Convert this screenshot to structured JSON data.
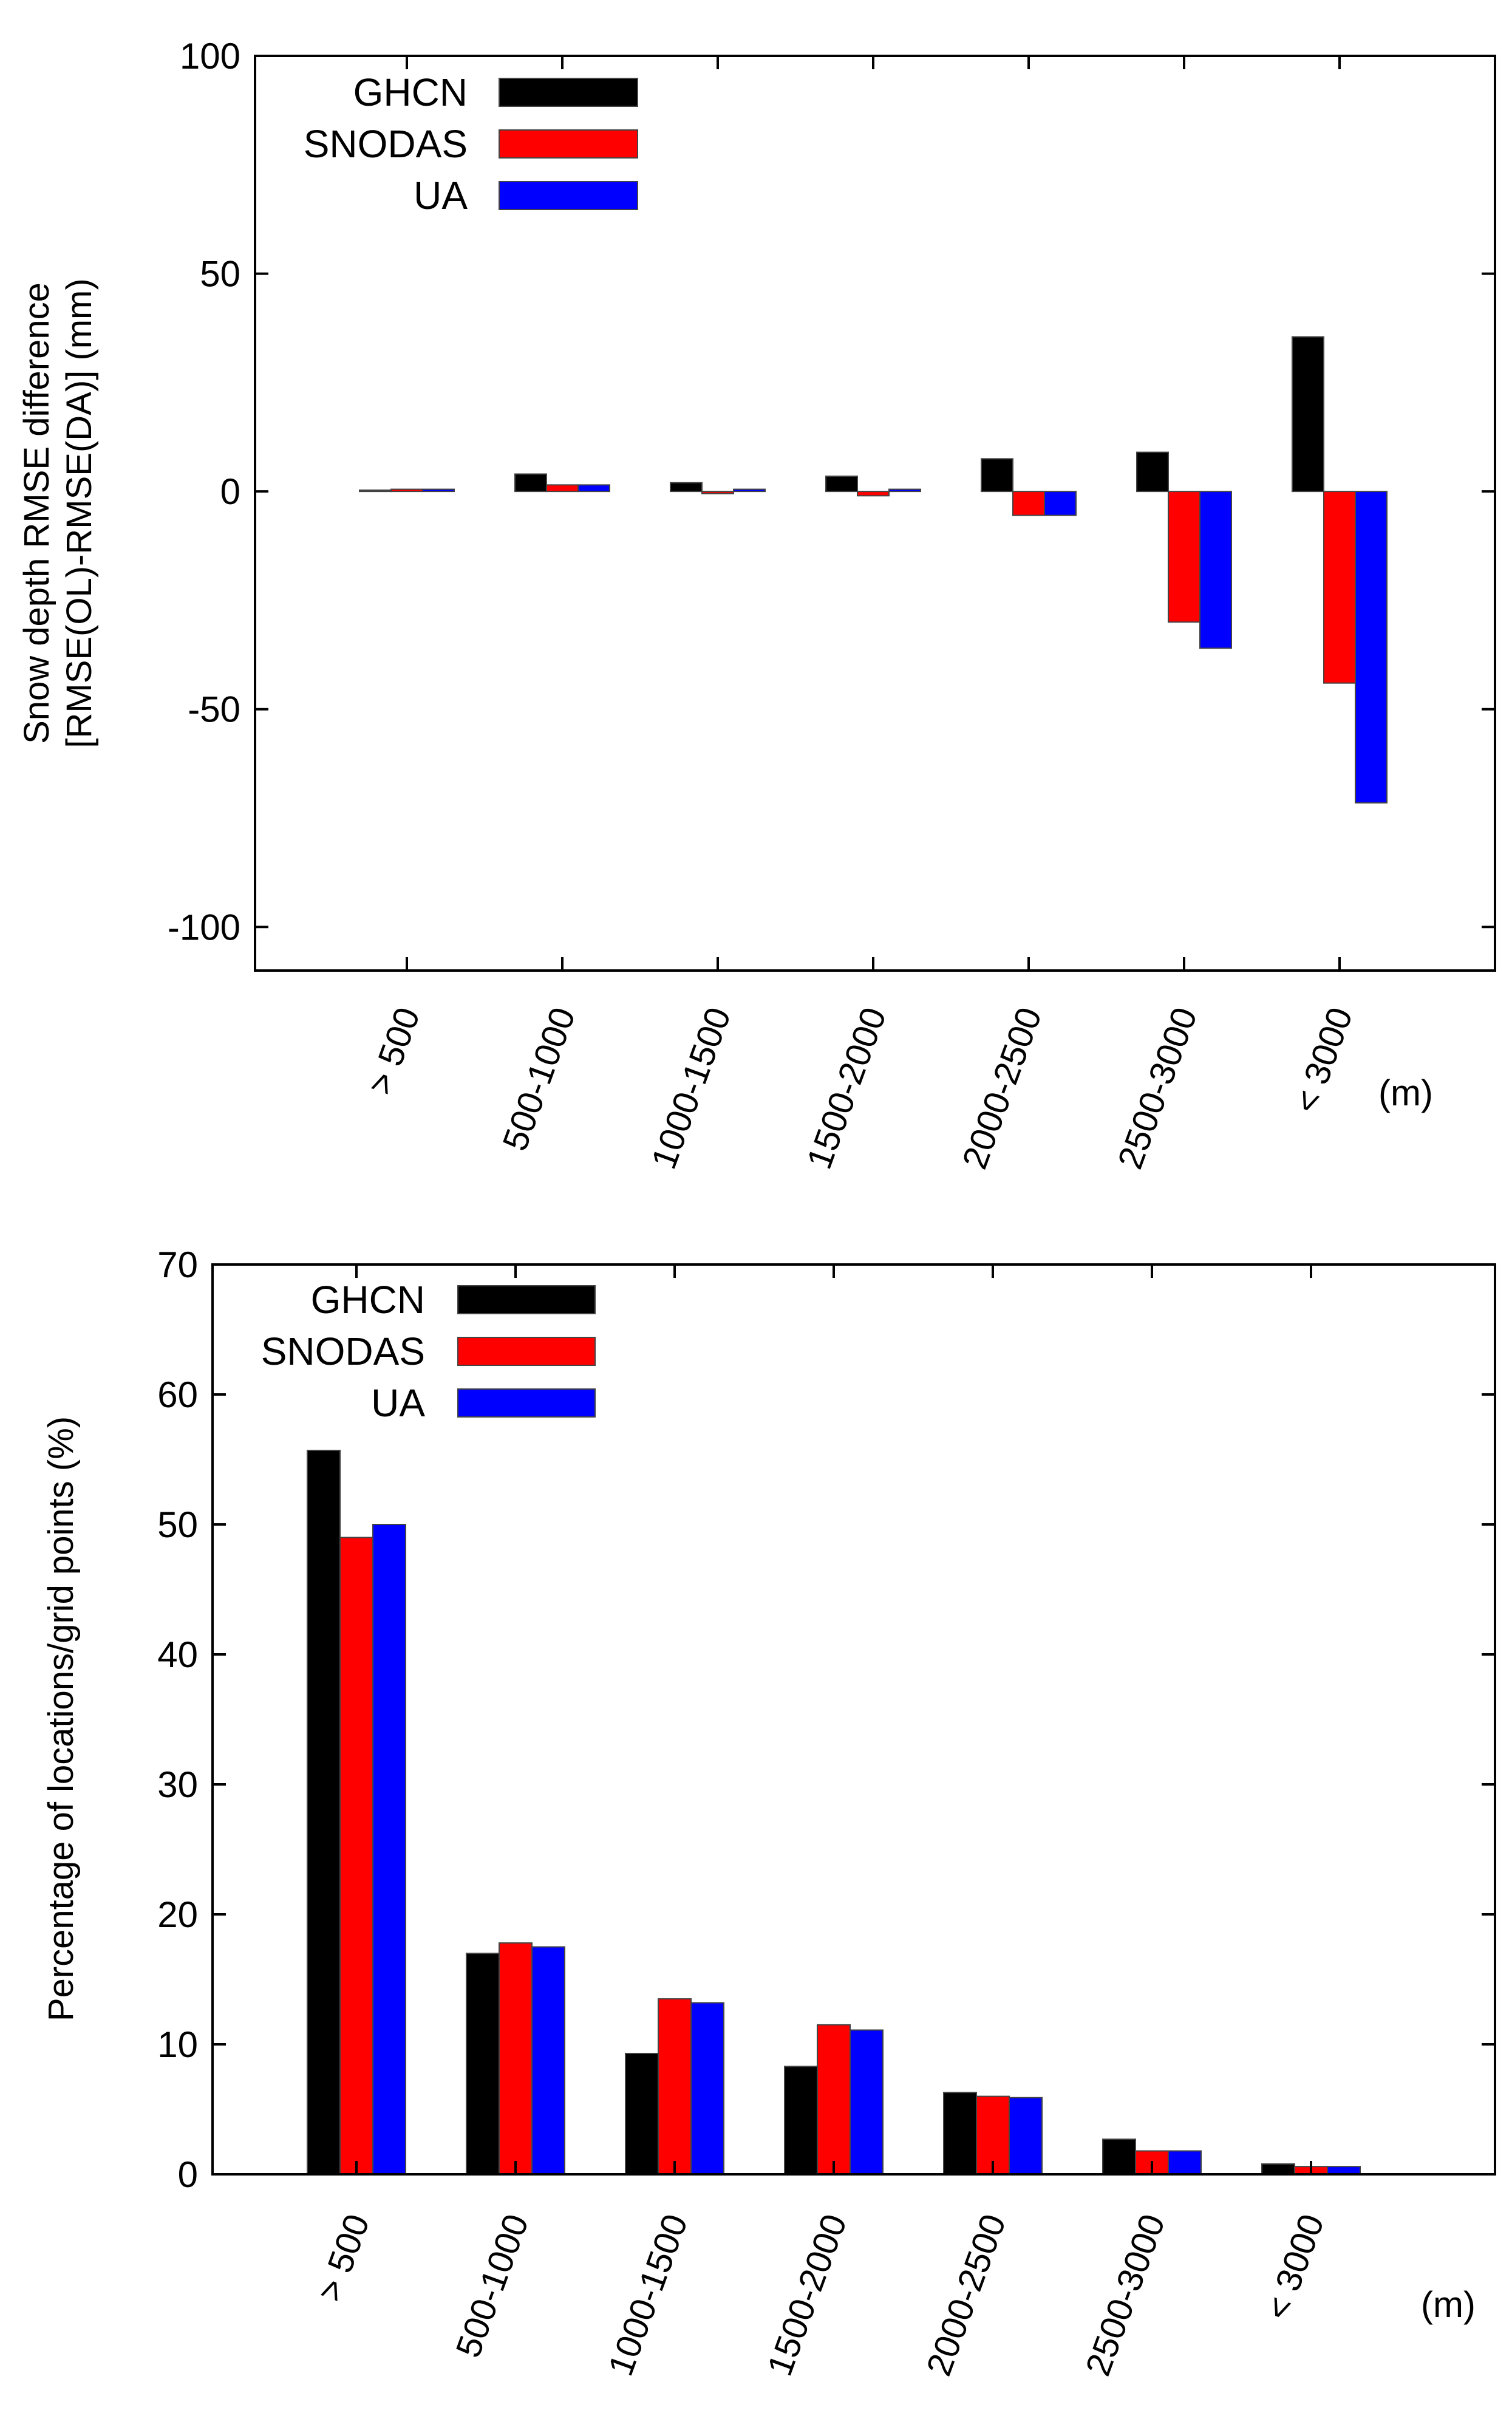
{
  "chart_data": [
    {
      "type": "bar",
      "title": "",
      "xlabel": "",
      "x_unit": "(m)",
      "ylabel": [
        "Snow depth RMSE difference",
        "[RMSE(OL)-RMSE(DA)] (mm)"
      ],
      "ylim": [
        -110,
        100
      ],
      "yticks": [
        100,
        50,
        0,
        -50,
        -100
      ],
      "categories": [
        "> 500",
        "500-1000",
        "1000-1500",
        "1500-2000",
        "2000-2500",
        "2500-3000",
        "< 3000"
      ],
      "series": [
        {
          "name": "GHCN",
          "color": "#000000",
          "values": [
            0.3,
            4,
            2,
            3.5,
            7.5,
            9,
            35.5
          ]
        },
        {
          "name": "SNODAS",
          "color": "#ff0000",
          "values": [
            0.5,
            1.5,
            -0.5,
            -1,
            -5.5,
            -30,
            -44
          ]
        },
        {
          "name": "UA",
          "color": "#0000ff",
          "values": [
            0.5,
            1.5,
            0.5,
            0.5,
            -5.5,
            -36,
            -71.5
          ]
        }
      ],
      "legend_position": "top-left"
    },
    {
      "type": "bar",
      "title": "",
      "xlabel": "",
      "x_unit": "(m)",
      "ylabel": [
        "Percentage of locations/grid points (%)"
      ],
      "ylim": [
        0,
        70
      ],
      "yticks": [
        70,
        60,
        50,
        40,
        30,
        20,
        10,
        0
      ],
      "categories": [
        "> 500",
        "500-1000",
        "1000-1500",
        "1500-2000",
        "2000-2500",
        "2500-3000",
        "< 3000"
      ],
      "series": [
        {
          "name": "GHCN",
          "color": "#000000",
          "values": [
            55.7,
            17,
            9.3,
            8.3,
            6.3,
            2.7,
            0.8
          ]
        },
        {
          "name": "SNODAS",
          "color": "#ff0000",
          "values": [
            49,
            17.8,
            13.5,
            11.5,
            6,
            1.8,
            0.6
          ]
        },
        {
          "name": "UA",
          "color": "#0000ff",
          "values": [
            50,
            17.5,
            13.2,
            11.1,
            5.9,
            1.8,
            0.6
          ]
        }
      ],
      "legend_position": "top-left"
    }
  ]
}
